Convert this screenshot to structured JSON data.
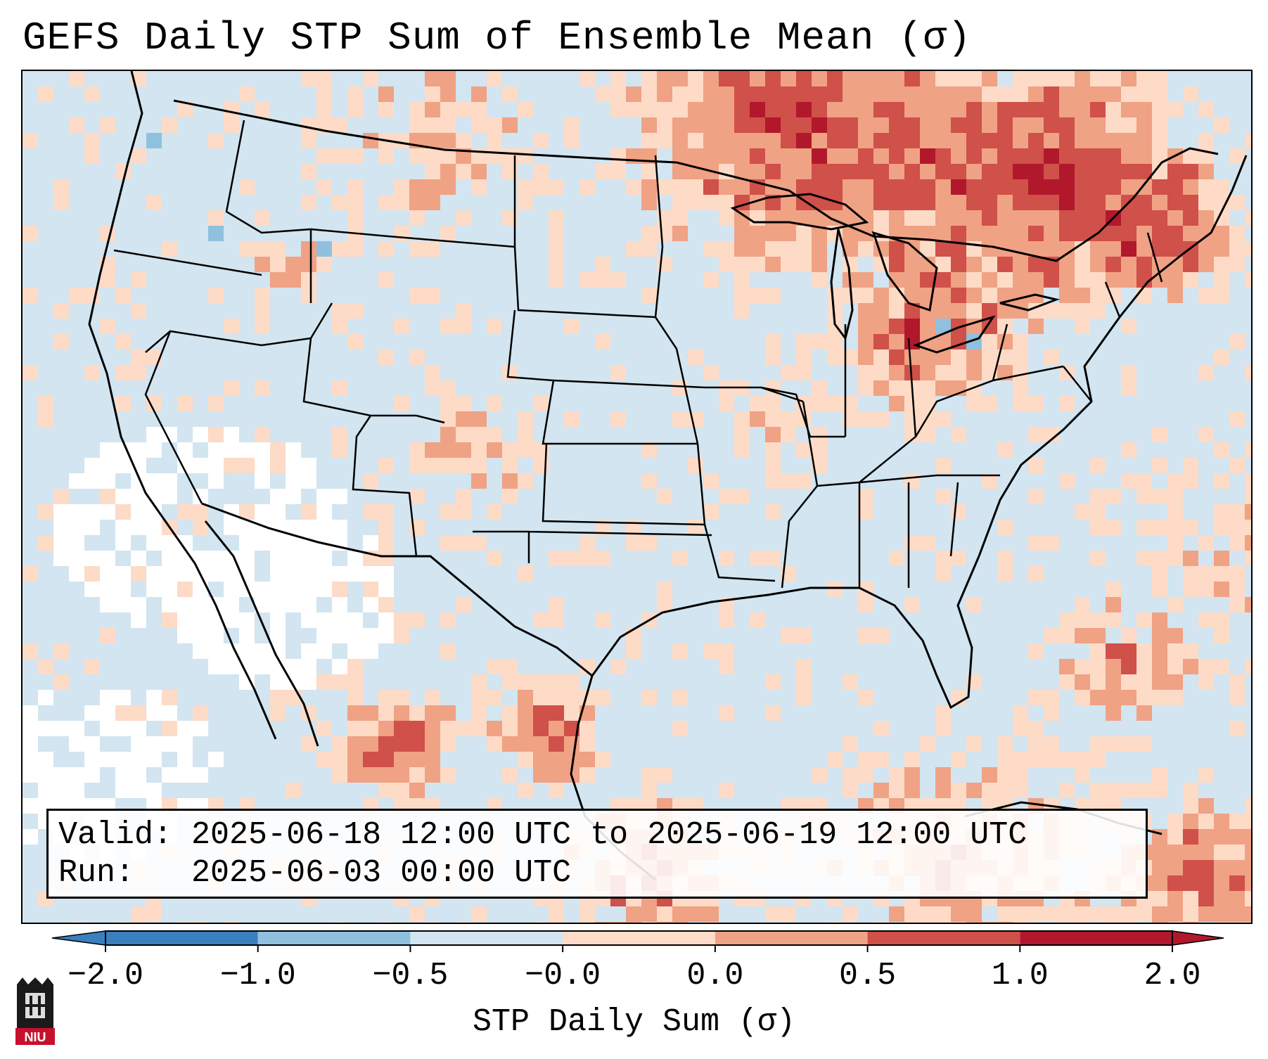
{
  "title": "GEFS Daily STP Sum of Ensemble Mean (σ)",
  "info": {
    "valid_label": "Valid:",
    "valid_value": "2025-06-18 12:00 UTC to 2025-06-19 12:00 UTC",
    "run_label": "Run:  ",
    "run_value": "2025-06-03 00:00 UTC"
  },
  "colorbar": {
    "label": "STP Daily Sum (σ)",
    "ticks": [
      "−2.0",
      "−1.0",
      "−0.5",
      "−0.0",
      "0.0",
      "0.5",
      "1.0",
      "2.0"
    ],
    "colors": [
      "#3a7fbe",
      "#8fc1de",
      "#d2e5f0",
      "#f7f7f7",
      "#fddbc7",
      "#f0a284",
      "#d0504a",
      "#b2182b"
    ]
  },
  "map_palette": {
    "background": "#d2e5f0",
    "neutral": "#ffffff",
    "light": "#fddbc7",
    "medium": "#f0a284",
    "strong": "#d0504a",
    "extreme": "#b2182b",
    "negative": "#8fc1de"
  },
  "logo": {
    "name": "NIU"
  }
}
